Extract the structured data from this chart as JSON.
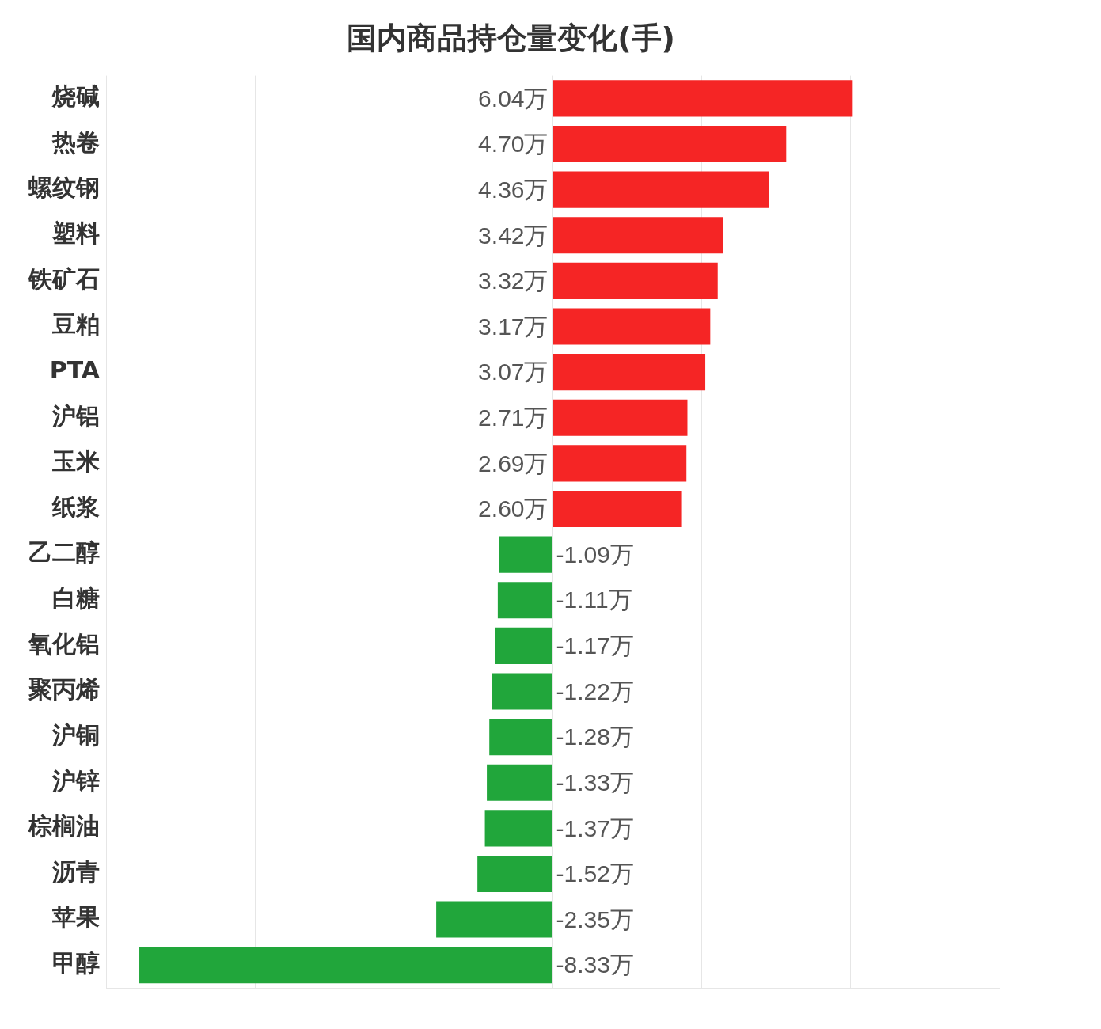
{
  "chart_data": {
    "type": "bar",
    "orientation": "horizontal",
    "title": "国内商品持仓量变化(手)",
    "categories": [
      "烧碱",
      "热卷",
      "螺纹钢",
      "塑料",
      "铁矿石",
      "豆粕",
      "PTA",
      "沪铝",
      "玉米",
      "纸浆",
      "乙二醇",
      "白糖",
      "氧化铝",
      "聚丙烯",
      "沪铜",
      "沪锌",
      "棕榈油",
      "沥青",
      "苹果",
      "甲醇"
    ],
    "values": [
      6.04,
      4.7,
      4.36,
      3.42,
      3.32,
      3.17,
      3.07,
      2.71,
      2.69,
      2.6,
      -1.09,
      -1.11,
      -1.17,
      -1.22,
      -1.28,
      -1.33,
      -1.37,
      -1.52,
      -2.35,
      -8.33
    ],
    "colors": [
      "#f52525",
      "#f52525",
      "#f52525",
      "#f52525",
      "#f52525",
      "#f52525",
      "#f52525",
      "#f52525",
      "#f52525",
      "#f52525",
      "#21a63b",
      "#21a63b",
      "#21a63b",
      "#21a63b",
      "#21a63b",
      "#21a63b",
      "#21a63b",
      "#21a63b",
      "#21a63b",
      "#21a63b"
    ],
    "value_labels": [
      "6.04万",
      "4.70万",
      "4.36万",
      "3.42万",
      "3.32万",
      "3.17万",
      "3.07万",
      "2.71万",
      "2.69万",
      "2.60万",
      "-1.09万",
      "-1.11万",
      "-1.17万",
      "-1.22万",
      "-1.28万",
      "-1.33万",
      "-1.37万",
      "-1.52万",
      "-2.35万",
      "-8.33万"
    ],
    "xlim": [
      -9,
      9
    ],
    "xticks": [
      {
        "value": -9,
        "label": null
      },
      {
        "value": -6,
        "label": null
      },
      {
        "value": -3,
        "label": null
      },
      {
        "value": 0,
        "label": null
      },
      {
        "value": 3,
        "label": null
      },
      {
        "value": 6,
        "label": null
      },
      {
        "value": 9,
        "label": null
      }
    ],
    "grid": "x",
    "tick_labels": "y"
  }
}
